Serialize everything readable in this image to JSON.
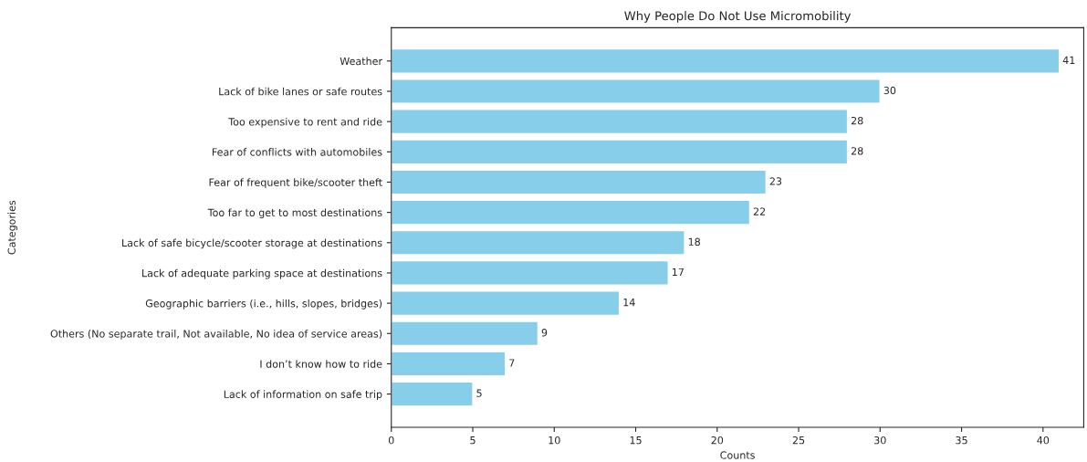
{
  "chart_data": {
    "type": "bar",
    "orientation": "horizontal",
    "title": "Why People Do Not Use Micromobility",
    "xlabel": "Counts",
    "ylabel": "Categories",
    "categories": [
      "Weather",
      "Lack of bike lanes or safe routes",
      "Too expensive to rent and ride",
      "Fear of conflicts with automobiles",
      "Fear of frequent bike/scooter theft",
      "Too far to get to most destinations",
      "Lack of safe bicycle/scooter storage at destinations",
      "Lack of adequate parking space at destinations",
      "Geographic barriers (i.e., hills, slopes, bridges)",
      "Others (No separate trail, Not available, No idea of service areas)",
      "I don’t know how to ride",
      "Lack of information on safe trip"
    ],
    "values": [
      41,
      30,
      28,
      28,
      23,
      22,
      18,
      17,
      14,
      9,
      7,
      5
    ],
    "color": "#87ceeb",
    "data_labels": true,
    "grid": false,
    "legend": false,
    "xlim": [
      0,
      42.5
    ],
    "xticks": [
      0,
      5,
      10,
      15,
      20,
      25,
      30,
      35,
      40
    ]
  }
}
